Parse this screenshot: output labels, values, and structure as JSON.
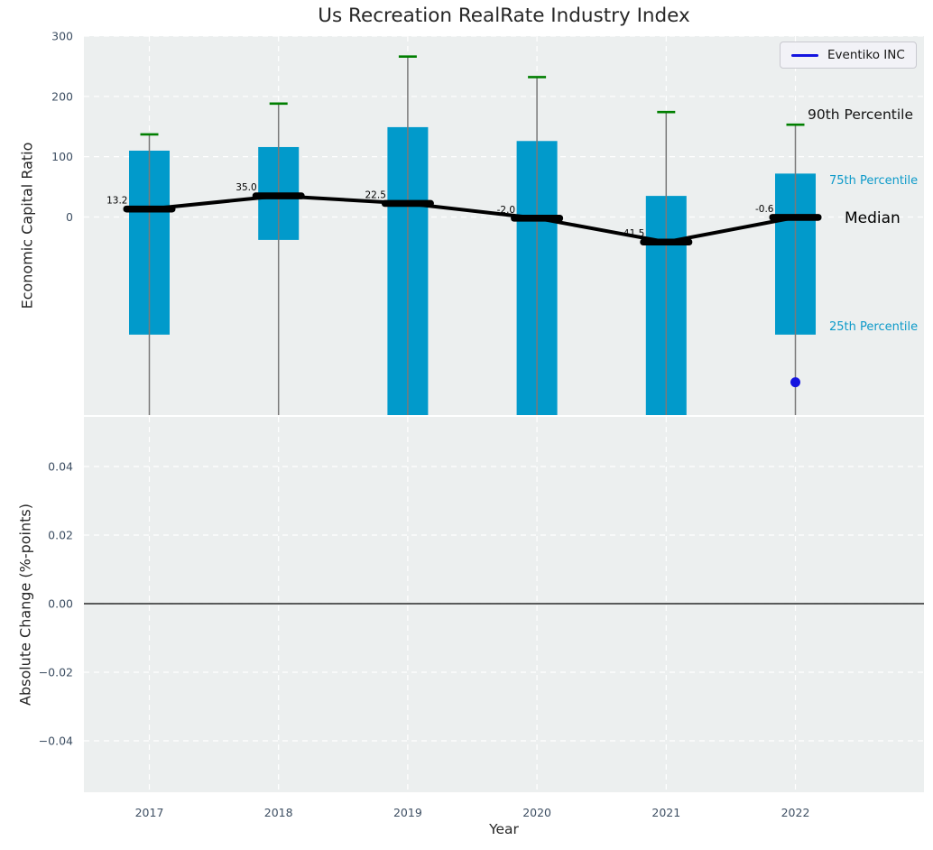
{
  "title": "Us Recreation RealRate Industry Index",
  "legend": {
    "label": "Eventiko INC"
  },
  "annotations": {
    "p90": "90th Percentile",
    "p75": "75th Percentile",
    "median": "Median",
    "p25": "25th Percentile"
  },
  "colors": {
    "bar": "#019acb",
    "whisker": "#797979",
    "cap": "#007f00",
    "median_line": "#000000",
    "company": "#1414e0",
    "plot_bg": "#ecefef",
    "grid": "#ffffff",
    "tick_text": "#3e4f63",
    "label_text": "#262626",
    "cyan_text": "#0d9ac9",
    "zero_line": "#000000"
  },
  "chart_data": [
    {
      "type": "bar",
      "subtype": "percentile-range-bars-with-median-line",
      "title": "Us Recreation RealRate Industry Index",
      "ylabel": "Economic Capital Ratio",
      "ylim": [
        -328,
        300
      ],
      "grid": true,
      "legend_position": "upper right",
      "categories": [
        "2017",
        "2018",
        "2019",
        "2020",
        "2021",
        "2022"
      ],
      "yticks": [
        {
          "value": 0,
          "label": "0"
        },
        {
          "value": 100,
          "label": "100"
        },
        {
          "value": 200,
          "label": "200"
        },
        {
          "value": 300,
          "label": "300"
        }
      ],
      "series": [
        {
          "name": "90th Percentile",
          "values": [
            137,
            188,
            266,
            232,
            174,
            153
          ]
        },
        {
          "name": "75th Percentile",
          "values": [
            110,
            116,
            149,
            126,
            35,
            72
          ]
        },
        {
          "name": "Median",
          "values": [
            13.2,
            35.0,
            22.5,
            -2.0,
            -41.5,
            -0.6
          ]
        },
        {
          "name": "25th Percentile",
          "values": [
            -195,
            -38,
            null,
            null,
            null,
            -195
          ],
          "clipped_below_axis": [
            false,
            false,
            true,
            true,
            true,
            false
          ]
        }
      ],
      "whiskers_clipped_at_bottom": [
        true,
        true,
        true,
        true,
        true,
        true
      ],
      "median_labels": [
        "13.2",
        "35.0",
        "22.5",
        "-2.0",
        "-41.5",
        "-0.6"
      ],
      "company_point": {
        "name": "Eventiko INC",
        "category": "2022",
        "value": -274
      }
    },
    {
      "type": "line",
      "ylabel": "Absolute Change (%-points)",
      "xlabel": "Year",
      "ylim": [
        -0.0547,
        0.0545
      ],
      "grid": true,
      "zero_line": true,
      "categories": [
        "2017",
        "2018",
        "2019",
        "2020",
        "2021",
        "2022"
      ],
      "yticks": [
        {
          "value": 0.04,
          "label": "0.04"
        },
        {
          "value": 0.02,
          "label": "0.02"
        },
        {
          "value": 0,
          "label": "0.00"
        },
        {
          "value": -0.02,
          "label": "−0.02"
        },
        {
          "value": -0.04,
          "label": "−0.04"
        }
      ],
      "series": []
    }
  ]
}
